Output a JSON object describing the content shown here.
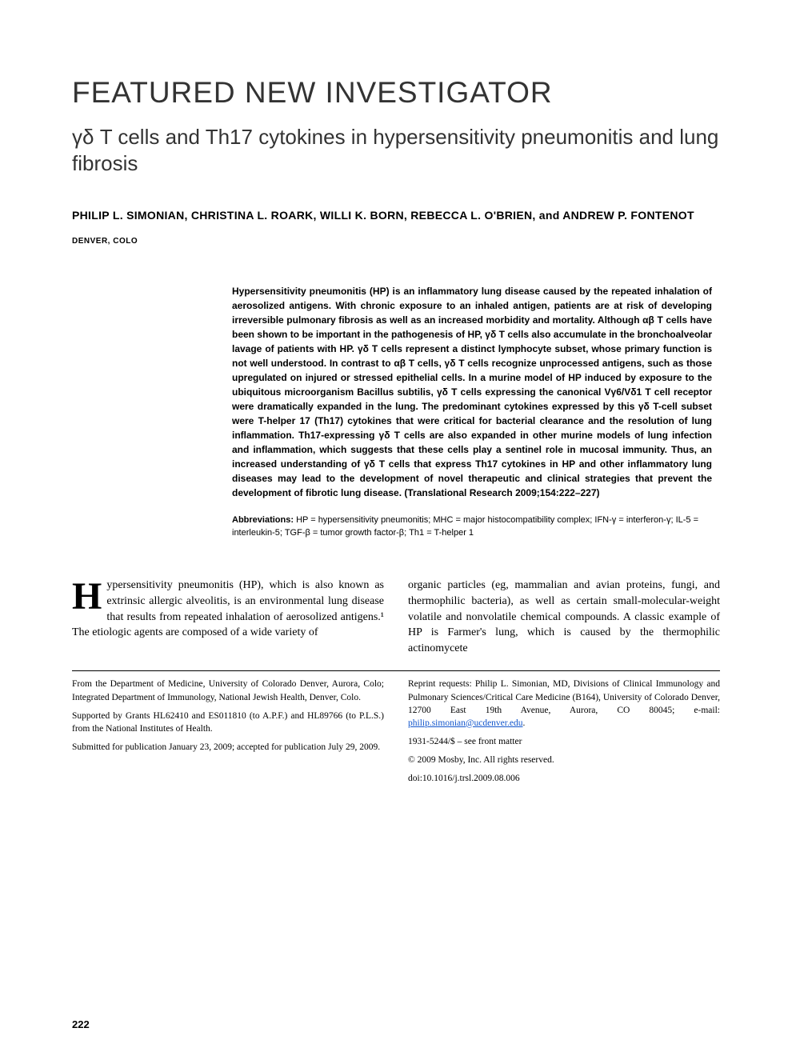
{
  "section_header": "FEATURED NEW INVESTIGATOR",
  "title": "γδ T cells and Th17 cytokines in hypersensitivity pneumonitis and lung fibrosis",
  "authors": "PHILIP L. SIMONIAN, CHRISTINA L. ROARK, WILLI K. BORN, REBECCA L. O'BRIEN, and ANDREW P. FONTENOT",
  "location": "DENVER, COLO",
  "abstract": "Hypersensitivity pneumonitis (HP) is an inflammatory lung disease caused by the repeated inhalation of aerosolized antigens. With chronic exposure to an inhaled antigen, patients are at risk of developing irreversible pulmonary fibrosis as well as an increased morbidity and mortality. Although αβ T cells have been shown to be important in the pathogenesis of HP, γδ T cells also accumulate in the bronchoalveolar lavage of patients with HP. γδ T cells represent a distinct lymphocyte subset, whose primary function is not well understood. In contrast to αβ T cells, γδ T cells recognize unprocessed antigens, such as those upregulated on injured or stressed epithelial cells. In a murine model of HP induced by exposure to the ubiquitous microorganism Bacillus subtilis, γδ T cells expressing the canonical Vγ6/Vδ1 T cell receptor were dramatically expanded in the lung. The predominant cytokines expressed by this γδ T-cell subset were T-helper 17 (Th17) cytokines that were critical for bacterial clearance and the resolution of lung inflammation. Th17-expressing γδ T cells are also expanded in other murine models of lung infection and inflammation, which suggests that these cells play a sentinel role in mucosal immunity. Thus, an increased understanding of γδ T cells that express Th17 cytokines in HP and other inflammatory lung diseases may lead to the development of novel therapeutic and clinical strategies that prevent the development of fibrotic lung disease. (Translational Research 2009;154:222–227)",
  "abbrev_label": "Abbreviations:",
  "abbreviations": " HP = hypersensitivity pneumonitis; MHC = major histocompatibility complex; IFN-γ = interferon-γ; IL-5 = interleukin-5; TGF-β = tumor growth factor-β; Th1 = T-helper 1",
  "body": {
    "dropcap": "H",
    "col1": "ypersensitivity pneumonitis (HP), which is also known as extrinsic allergic alveolitis, is an environmental lung disease that results from repeated inhalation of aerosolized antigens.¹ The etiologic agents are composed of a wide variety of",
    "col2": "organic particles (eg, mammalian and avian proteins, fungi, and thermophilic bacteria), as well as certain small-molecular-weight volatile and nonvolatile chemical compounds. A classic example of HP is Farmer's lung, which is caused by the thermophilic actinomycete"
  },
  "footnotes": {
    "left": [
      "From the Department of Medicine, University of Colorado Denver, Aurora, Colo; Integrated Department of Immunology, National Jewish Health, Denver, Colo.",
      "Supported by Grants HL62410 and ES011810 (to A.P.F.) and HL89766 (to P.L.S.) from the National Institutes of Health.",
      "Submitted for publication January 23, 2009; accepted for publication July 29, 2009."
    ],
    "right_reprint": "Reprint requests: Philip L. Simonian, MD, Divisions of Clinical Immunology and Pulmonary Sciences/Critical Care Medicine (B164), University of Colorado Denver, 12700 East 19th Avenue, Aurora, CO 80045; e-mail: ",
    "email": "philip.simonian@ucdenver.edu",
    "right_rest": [
      "1931-5244/$ – see front matter",
      "© 2009 Mosby, Inc. All rights reserved.",
      "doi:10.1016/j.trsl.2009.08.006"
    ]
  },
  "page_number": "222",
  "colors": {
    "background": "#ffffff",
    "text": "#000000",
    "header_text": "#333333",
    "link": "#1155cc"
  },
  "typography": {
    "section_header_size": 37,
    "title_size": 26,
    "authors_size": 14,
    "location_size": 10,
    "abstract_size": 12,
    "abbrev_size": 11,
    "body_size": 14,
    "footnote_size": 11.5,
    "dropcap_size": 48
  }
}
